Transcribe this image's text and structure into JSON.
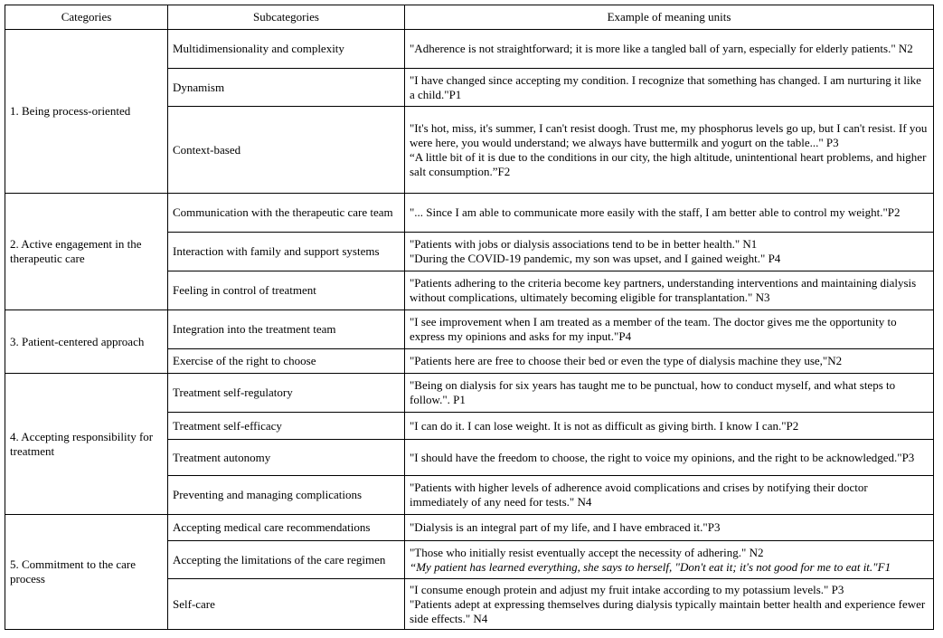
{
  "headers": [
    "Categories",
    "Subcategories",
    "Example of meaning units"
  ],
  "categories": [
    {
      "label": "1. Being process-oriented",
      "subs": [
        {
          "label": "Multidimensionality and complexity",
          "quotes": [
            {
              "text": "\"Adherence is not straightforward; it is more like a tangled ball of yarn, especially for elderly patients.\" N2"
            }
          ]
        },
        {
          "label": "Dynamism",
          "quotes": [
            {
              "text": "\"I have changed since accepting my condition. I recognize that something has changed. I am nurturing it like a child.\"P1"
            }
          ]
        },
        {
          "label": "Context-based",
          "quotes": [
            {
              "text": "\"It's hot, miss, it's summer, I can't resist doogh. Trust me, my phosphorus levels go up, but I can't resist. If you were here, you would understand; we always have buttermilk and yogurt on the table...\" P3"
            },
            {
              "text": "“A little bit of it is due to the conditions in our city, the high altitude, unintentional heart problems, and higher salt consumption.”F2"
            }
          ]
        }
      ]
    },
    {
      "label": "2. Active engagement in the therapeutic care",
      "subs": [
        {
          "label": "Communication with the therapeutic care team",
          "quotes": [
            {
              "text": "\"... Since I am able to communicate more easily with the staff, I am better able to control my weight.\"P2"
            }
          ]
        },
        {
          "label": "Interaction with family and support systems",
          "quotes": [
            {
              "text": "\"Patients with jobs or dialysis associations tend to be in better health.\" N1"
            },
            {
              "text": "\"During the COVID-19 pandemic, my son was upset, and I gained weight.\" P4"
            }
          ]
        },
        {
          "label": "Feeling in control of treatment",
          "quotes": [
            {
              "text": "\"Patients adhering to the criteria become key partners, understanding interventions and maintaining dialysis without complications, ultimately becoming eligible for transplantation.\" N3"
            }
          ]
        }
      ]
    },
    {
      "label": "3. Patient-centered approach",
      "subs": [
        {
          "label": "Integration into the treatment team",
          "quotes": [
            {
              "text": "\"I see improvement when I am treated as a member of the team. The doctor gives me the opportunity to express my opinions and asks for my input.\"P4"
            }
          ]
        },
        {
          "label": "Exercise of the right to choose",
          "quotes": [
            {
              "text": "\"Patients here are free to choose their bed or even the type of dialysis machine they use,\"N2"
            }
          ]
        }
      ]
    },
    {
      "label": "4. Accepting responsibility for treatment",
      "subs": [
        {
          "label": "Treatment self-regulatory",
          "quotes": [
            {
              "text": "\"Being on dialysis for six years has taught me to be punctual, how to conduct myself, and what steps to follow.\". P1"
            }
          ]
        },
        {
          "label": "Treatment self-efficacy",
          "quotes": [
            {
              "text": "\"I can do it. I can lose weight. It is not as difficult as giving birth. I know I can.\"P2"
            }
          ]
        },
        {
          "label": "Treatment autonomy",
          "quotes": [
            {
              "text": "\"I should have the freedom to choose, the right to voice my opinions, and the right to be acknowledged.\"P3"
            }
          ]
        },
        {
          "label": "Preventing and managing complications",
          "quotes": [
            {
              "text": "\"Patients with higher levels of adherence avoid complications and crises by notifying their doctor immediately of any need for tests.\" N4"
            }
          ]
        }
      ]
    },
    {
      "label": "5. Commitment to the care process",
      "subs": [
        {
          "label": "Accepting medical care recommendations",
          "quotes": [
            {
              "text": "\"Dialysis is an integral part of my life, and I have embraced it.\"P3"
            }
          ]
        },
        {
          "label": "Accepting the limitations of the care regimen",
          "quotes": [
            {
              "text": "\"Those who initially resist eventually accept the necessity of adhering.\" N2"
            },
            {
              "text": "“My patient has learned everything, she says to herself, \"Don't eat it; it's not good for me to eat it.\"F1",
              "italic": true
            }
          ]
        },
        {
          "label": "Self-care",
          "quotes": [
            {
              "text": "\"I consume enough protein and adjust my fruit intake according to my potassium levels.\" P3"
            },
            {
              "text": "\"Patients adept at expressing themselves during dialysis typically maintain better health and experience fewer side effects.\" N4"
            }
          ]
        }
      ]
    }
  ]
}
